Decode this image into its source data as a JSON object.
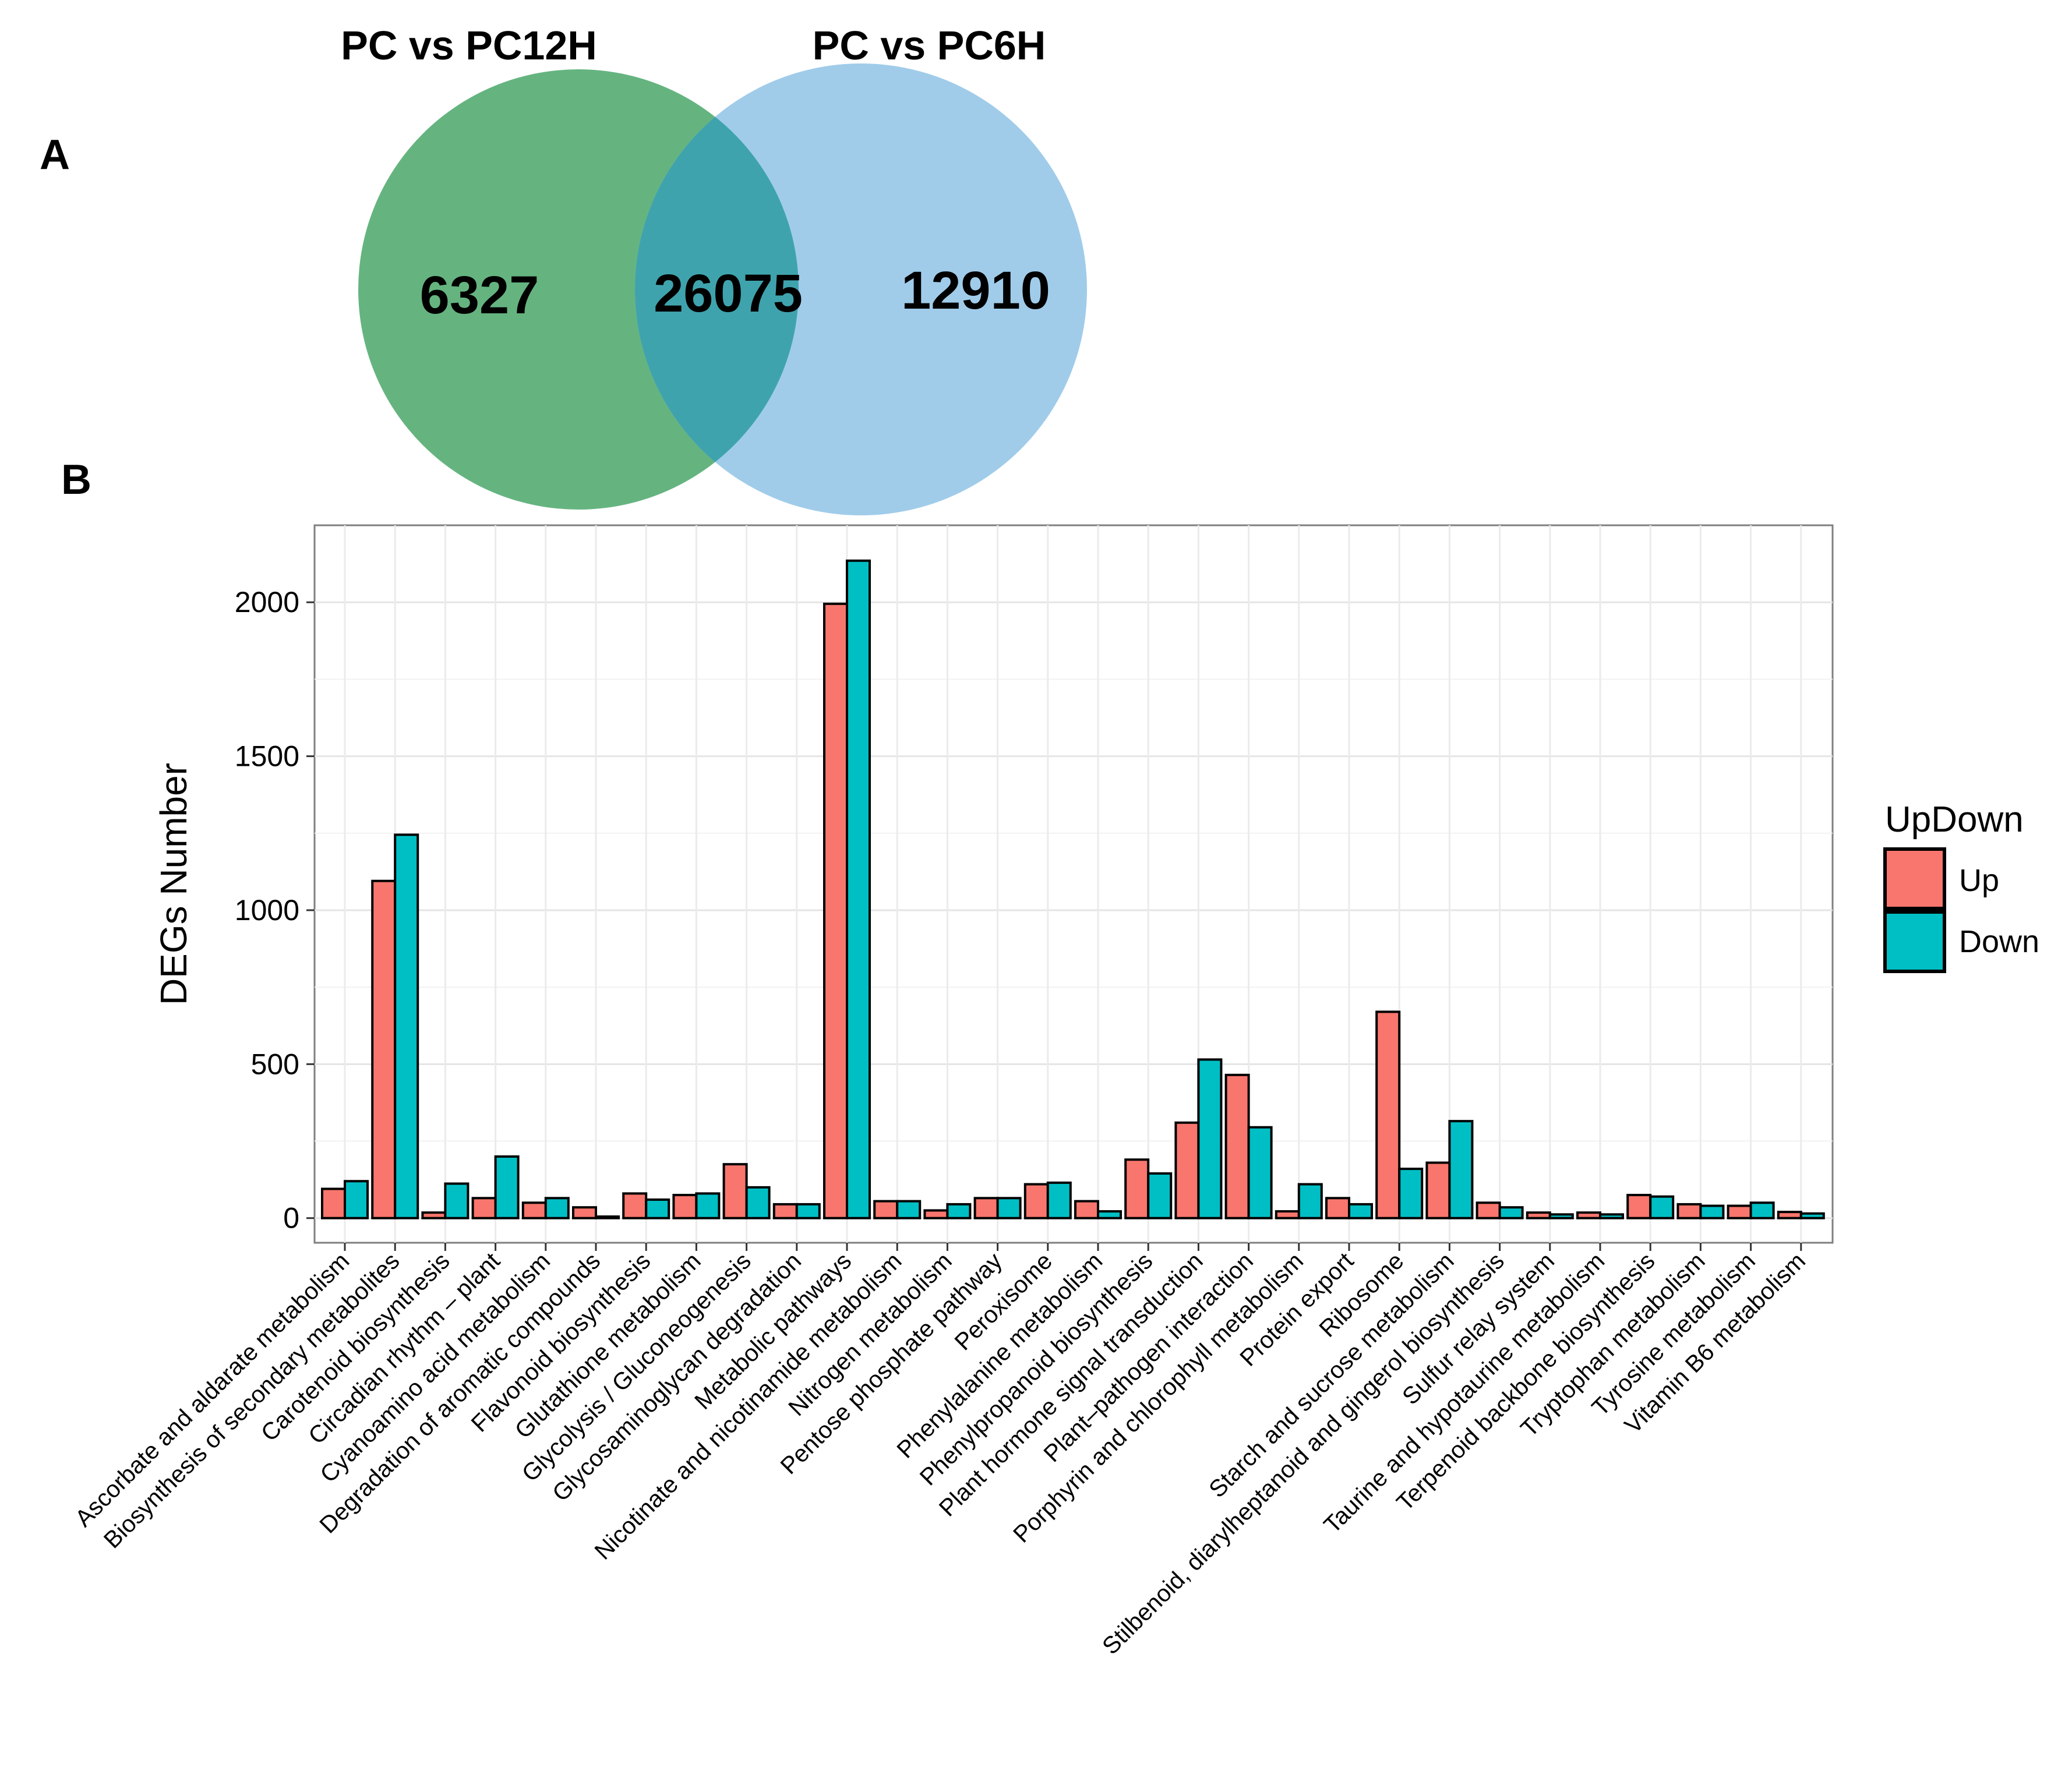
{
  "panel_a": {
    "label": "A",
    "set_left_name": "PC vs PC12H",
    "set_right_name": "PC vs PC6H",
    "left_only": "6327",
    "overlap": "26075",
    "right_only": "12910",
    "left_color": "#4aa76a",
    "right_color": "#96c7e8"
  },
  "panel_b": {
    "label": "B"
  },
  "legend": {
    "title": "UpDown",
    "up_label": "Up",
    "down_label": "Down"
  },
  "colors": {
    "up": "#f8766d",
    "down": "#00bfc4"
  },
  "chart_data": {
    "type": "bar",
    "title": "",
    "xlabel": "",
    "ylabel": "DEGs Number",
    "ylim": [
      -80,
      2250
    ],
    "yticks": [
      0,
      500,
      1000,
      1500,
      2000
    ],
    "categories": [
      "Ascorbate and aldarate metabolism",
      "Biosynthesis of secondary metabolites",
      "Carotenoid biosynthesis",
      "Circadian rhythm – plant",
      "Cyanoamino acid metabolism",
      "Degradation of aromatic compounds",
      "Flavonoid biosynthesis",
      "Glutathione metabolism",
      "Glycolysis / Gluconeogenesis",
      "Glycosaminoglycan degradation",
      "Metabolic pathways",
      "Nicotinate and nicotinamide metabolism",
      "Nitrogen metabolism",
      "Pentose phosphate pathway",
      "Peroxisome",
      "Phenylalanine metabolism",
      "Phenylpropanoid biosynthesis",
      "Plant hormone signal transduction",
      "Plant–pathogen interaction",
      "Porphyrin and chlorophyll metabolism",
      "Protein export",
      "Ribosome",
      "Starch and sucrose metabolism",
      "Stilbenoid, diarylheptanoid and gingerol biosynthesis",
      "Sulfur relay system",
      "Taurine and hypotaurine metabolism",
      "Terpenoid backbone biosynthesis",
      "Tryptophan metabolism",
      "Tyrosine metabolism",
      "Vitamin B6 metabolism"
    ],
    "series": [
      {
        "name": "Up",
        "values": [
          95,
          1095,
          18,
          65,
          50,
          35,
          80,
          75,
          175,
          45,
          1995,
          55,
          25,
          65,
          110,
          55,
          190,
          310,
          465,
          22,
          65,
          670,
          180,
          50,
          18,
          18,
          75,
          45,
          40,
          20
        ]
      },
      {
        "name": "Down",
        "values": [
          120,
          1245,
          112,
          200,
          65,
          5,
          60,
          80,
          100,
          45,
          2135,
          55,
          45,
          65,
          115,
          22,
          145,
          515,
          295,
          110,
          45,
          160,
          315,
          35,
          12,
          12,
          70,
          40,
          50,
          15
        ]
      }
    ],
    "legend_position": "right",
    "grid": true
  }
}
